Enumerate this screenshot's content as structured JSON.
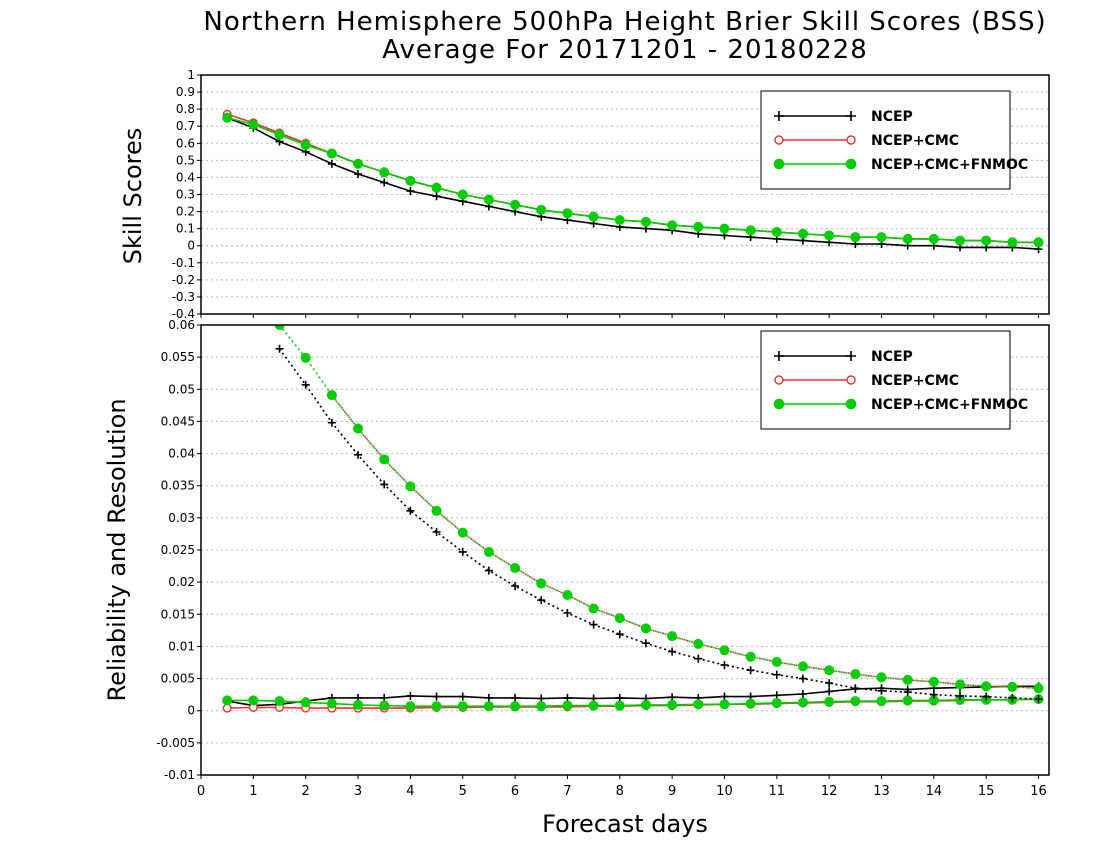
{
  "title_line1": "Northern Hemisphere 500hPa Height Brier Skill Scores (BSS)",
  "title_line2": "Average For 20171201 - 20180228",
  "xlabel": "Forecast days",
  "top_ylabel": "Skill Scores",
  "bottom_ylabel": "Reliability and Resolution",
  "colors": {
    "ncep": "#000000",
    "cmc": "#ee3333",
    "fnmoc": "#00cc00"
  },
  "chart_data": [
    {
      "type": "line",
      "panel": "top",
      "xlim": [
        0,
        16.2
      ],
      "ylim": [
        -0.4,
        1.0
      ],
      "xticks": [
        "0",
        "1",
        "2",
        "3",
        "4",
        "5",
        "6",
        "7",
        "8",
        "9",
        "10",
        "11",
        "12",
        "13",
        "14",
        "15",
        "16"
      ],
      "yticks": [
        "1",
        "0.9",
        "0.8",
        "0.7",
        "0.6",
        "0.5",
        "0.4",
        "0.3",
        "0.2",
        "0.1",
        "0",
        "-0.1",
        "-0.2",
        "-0.3",
        "-0.4"
      ],
      "grid": true,
      "legend_position": "top-right",
      "legend": [
        "NCEP",
        "NCEP+CMC",
        "NCEP+CMC+FNMOC"
      ],
      "x": [
        0.5,
        1,
        1.5,
        2,
        2.5,
        3,
        3.5,
        4,
        4.5,
        5,
        5.5,
        6,
        6.5,
        7,
        7.5,
        8,
        8.5,
        9,
        9.5,
        10,
        10.5,
        11,
        11.5,
        12,
        12.5,
        13,
        13.5,
        14,
        14.5,
        15,
        15.5,
        16
      ],
      "series": [
        {
          "name": "NCEP",
          "values": [
            0.75,
            0.69,
            0.61,
            0.55,
            0.48,
            0.42,
            0.37,
            0.32,
            0.29,
            0.26,
            0.23,
            0.2,
            0.17,
            0.15,
            0.13,
            0.11,
            0.1,
            0.09,
            0.07,
            0.06,
            0.05,
            0.04,
            0.03,
            0.02,
            0.01,
            0.01,
            0.0,
            0.0,
            -0.01,
            -0.01,
            -0.01,
            -0.02
          ]
        },
        {
          "name": "NCEP+CMC",
          "values": [
            0.77,
            0.72,
            0.66,
            0.6,
            0.54,
            0.48,
            0.43,
            0.38,
            0.34,
            0.3,
            0.27,
            0.24,
            0.21,
            0.19,
            0.17,
            0.15,
            0.14,
            0.12,
            0.11,
            0.1,
            0.09,
            0.08,
            0.07,
            0.06,
            0.05,
            0.05,
            0.04,
            0.04,
            0.03,
            0.03,
            0.02,
            0.02
          ]
        },
        {
          "name": "NCEP+CMC+FNMOC",
          "values": [
            0.75,
            0.71,
            0.65,
            0.59,
            0.54,
            0.48,
            0.43,
            0.38,
            0.34,
            0.3,
            0.27,
            0.24,
            0.21,
            0.19,
            0.17,
            0.15,
            0.14,
            0.12,
            0.11,
            0.1,
            0.09,
            0.08,
            0.07,
            0.06,
            0.05,
            0.05,
            0.04,
            0.04,
            0.03,
            0.03,
            0.02,
            0.02
          ]
        }
      ]
    },
    {
      "type": "line",
      "panel": "bottom",
      "xlim": [
        0,
        16.2
      ],
      "ylim": [
        -0.01,
        0.06
      ],
      "xticks": [
        "0",
        "1",
        "2",
        "3",
        "4",
        "5",
        "6",
        "7",
        "8",
        "9",
        "10",
        "11",
        "12",
        "13",
        "14",
        "15",
        "16"
      ],
      "yticks": [
        "0.06",
        "0.055",
        "0.05",
        "0.045",
        "0.04",
        "0.035",
        "0.03",
        "0.025",
        "0.02",
        "0.015",
        "0.01",
        "0.005",
        "0",
        "-0.005",
        "-0.01"
      ],
      "grid": true,
      "legend_position": "top-right",
      "legend": [
        "NCEP",
        "NCEP+CMC",
        "NCEP+CMC+FNMOC"
      ],
      "x": [
        0.5,
        1,
        1.5,
        2,
        2.5,
        3,
        3.5,
        4,
        4.5,
        5,
        5.5,
        6,
        6.5,
        7,
        7.5,
        8,
        8.5,
        9,
        9.5,
        10,
        10.5,
        11,
        11.5,
        12,
        12.5,
        13,
        13.5,
        14,
        14.5,
        15,
        15.5,
        16
      ],
      "series": [
        {
          "name": "NCEP",
          "component": "reliability",
          "values": [
            0.0015,
            0.0008,
            0.001,
            0.0015,
            0.002,
            0.002,
            0.002,
            0.0023,
            0.0022,
            0.0022,
            0.002,
            0.002,
            0.0019,
            0.002,
            0.0019,
            0.002,
            0.0019,
            0.0021,
            0.002,
            0.0022,
            0.0022,
            0.0024,
            0.0026,
            0.003,
            0.0034,
            0.0035,
            0.0033,
            0.0035,
            0.0036,
            0.0037,
            0.0038,
            0.0038
          ]
        },
        {
          "name": "NCEP+CMC",
          "component": "reliability",
          "values": [
            0.0004,
            0.0005,
            0.0005,
            0.0004,
            0.0004,
            0.0004,
            0.0004,
            0.0004,
            0.0005,
            0.0005,
            0.0006,
            0.0006,
            0.0006,
            0.0006,
            0.0007,
            0.0007,
            0.0008,
            0.0008,
            0.0009,
            0.001,
            0.001,
            0.0011,
            0.0012,
            0.0013,
            0.0014,
            0.0014,
            0.0015,
            0.0015,
            0.0016,
            0.0017,
            0.0017,
            0.0018
          ]
        },
        {
          "name": "NCEP+CMC+FNMOC",
          "component": "reliability",
          "values": [
            0.0016,
            0.0016,
            0.0015,
            0.0013,
            0.0011,
            0.0009,
            0.0008,
            0.0007,
            0.0007,
            0.0007,
            0.0007,
            0.0007,
            0.0007,
            0.0008,
            0.0008,
            0.0008,
            0.0009,
            0.0009,
            0.001,
            0.001,
            0.0011,
            0.0012,
            0.0013,
            0.0014,
            0.0015,
            0.0015,
            0.0016,
            0.0016,
            0.0017,
            0.0017,
            0.0017,
            0.0018
          ]
        },
        {
          "name": "NCEP",
          "component": "resolution",
          "values": [
            null,
            null,
            0.0563,
            0.0507,
            0.0448,
            0.0398,
            0.0352,
            0.0311,
            0.0278,
            0.0247,
            0.0218,
            0.0194,
            0.0172,
            0.0152,
            0.0134,
            0.0119,
            0.0105,
            0.0092,
            0.0081,
            0.0071,
            0.0063,
            0.0056,
            0.005,
            0.0043,
            0.0035,
            0.0031,
            0.0029,
            0.0025,
            0.0023,
            0.0022,
            0.002,
            0.0018
          ]
        },
        {
          "name": "NCEP+CMC",
          "component": "resolution",
          "values": [
            null,
            null,
            null,
            null,
            0.0491,
            0.0439,
            0.0391,
            0.0349,
            0.0311,
            0.0277,
            0.0247,
            0.0222,
            0.0198,
            0.018,
            0.0159,
            0.0144,
            0.0128,
            0.0116,
            0.0104,
            0.0094,
            0.0084,
            0.0076,
            0.0069,
            0.0063,
            0.0057,
            0.0052,
            0.0048,
            0.0045,
            0.0041,
            0.0038,
            0.0037,
            0.0035
          ]
        },
        {
          "name": "NCEP+CMC+FNMOC",
          "component": "resolution",
          "values": [
            null,
            null,
            0.06,
            0.0549,
            0.0491,
            0.0439,
            0.0391,
            0.0349,
            0.0311,
            0.0277,
            0.0247,
            0.0222,
            0.0198,
            0.018,
            0.0159,
            0.0144,
            0.0128,
            0.0116,
            0.0104,
            0.0094,
            0.0084,
            0.0076,
            0.0069,
            0.0063,
            0.0057,
            0.0052,
            0.0048,
            0.0045,
            0.0041,
            0.0038,
            0.0037,
            0.0035
          ]
        }
      ]
    }
  ]
}
